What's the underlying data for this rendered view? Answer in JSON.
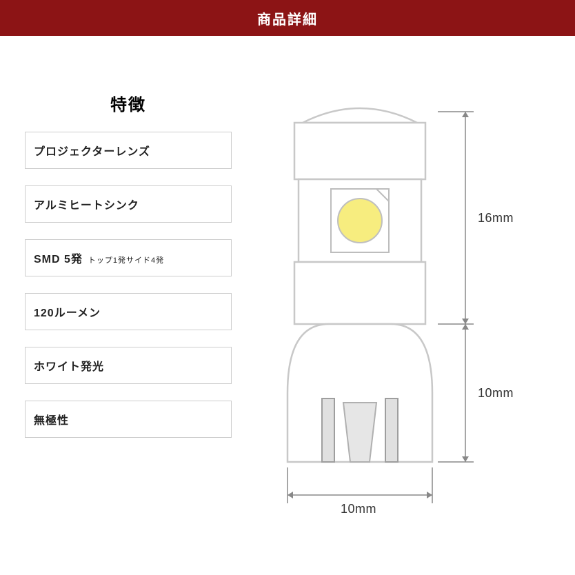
{
  "header": {
    "title": "商品詳細",
    "bg_color": "#8c1415",
    "text_color": "#ffffff"
  },
  "features": {
    "title": "特徴",
    "box_border_color": "#cccccc",
    "box_text_color": "#222222",
    "items": [
      {
        "label": "プロジェクターレンズ",
        "sub": ""
      },
      {
        "label": "アルミヒートシンク",
        "sub": ""
      },
      {
        "label": "SMD 5発",
        "sub": "トップ1発サイド4発"
      },
      {
        "label": "120ルーメン",
        "sub": ""
      },
      {
        "label": "ホワイト発光",
        "sub": ""
      },
      {
        "label": "無極性",
        "sub": ""
      }
    ]
  },
  "diagram": {
    "dimensions": {
      "upper_height": "16mm",
      "lower_height": "10mm",
      "width": "10mm"
    },
    "dim_line_color": "#888888",
    "dim_text_color": "#333333",
    "body_fill": "#ffffff",
    "body_stroke": "#c8c8c8",
    "body_stroke_width": 2.5,
    "led_chip_fill": "#ffffff",
    "led_chip_stroke": "#bdbdbd",
    "led_circle_fill": "#f7ed7f",
    "led_circle_stroke": "#bfbfbf",
    "pin_fill": "#e0e0e0",
    "pin_stroke": "#9e9e9e",
    "tab_fill": "#e6e6e6",
    "tab_stroke": "#b0b0b0"
  }
}
